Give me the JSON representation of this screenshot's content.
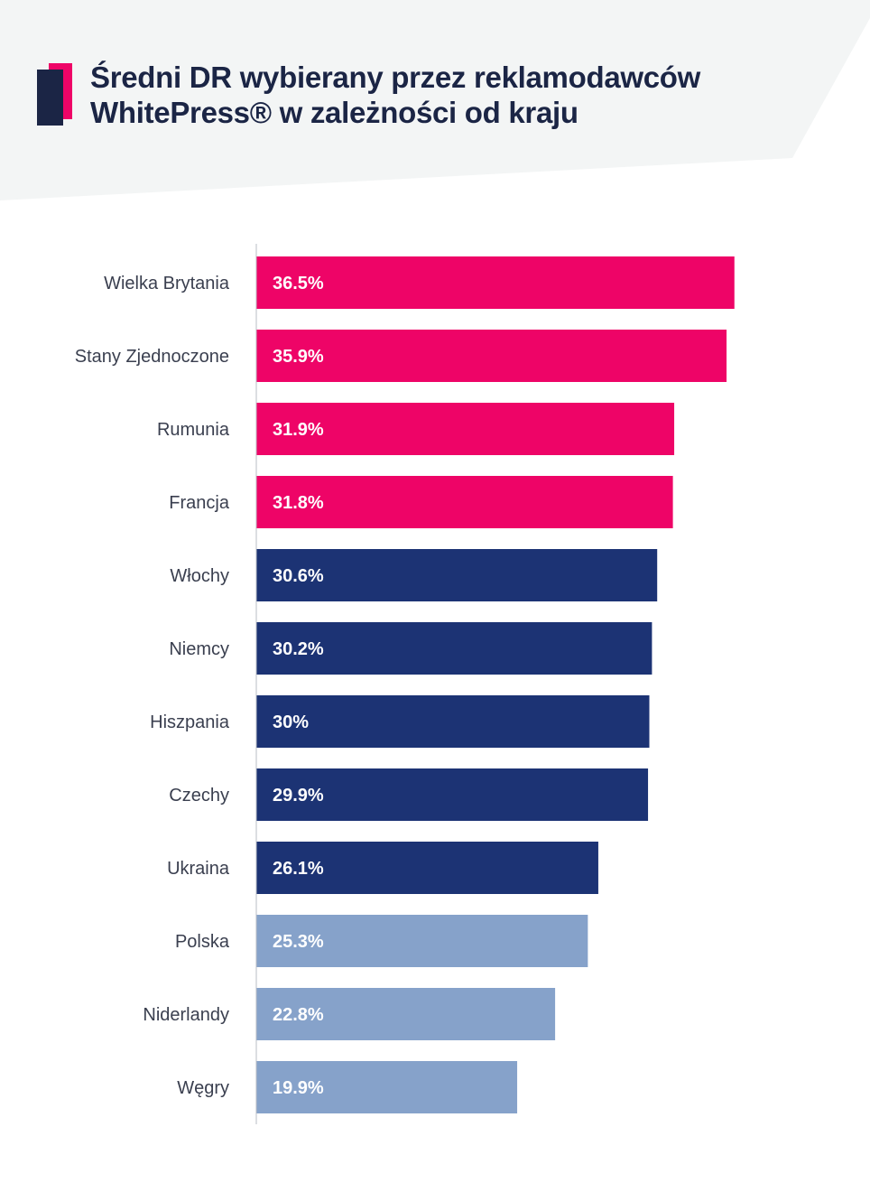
{
  "header": {
    "title_line1": "Średni DR wybierany przez reklamodawców",
    "title_line2": "WhitePress® w zależności od kraju"
  },
  "colors": {
    "top4": "#ee0467",
    "mid": "#1c3374",
    "low": "#86a2ca",
    "header_bg": "#f3f5f5",
    "logo_dark": "#1b2545",
    "logo_accent": "#ee0467"
  },
  "chart_data": {
    "type": "bar",
    "orientation": "horizontal",
    "categories": [
      "Wielka Brytania",
      "Stany Zjednoczone",
      "Rumunia",
      "Francja",
      "Włochy",
      "Niemcy",
      "Hiszpania",
      "Czechy",
      "Ukraina",
      "Polska",
      "Niderlandy",
      "Węgry"
    ],
    "values": [
      36.5,
      35.9,
      31.9,
      31.8,
      30.6,
      30.2,
      30,
      29.9,
      26.1,
      25.3,
      22.8,
      19.9
    ],
    "value_labels": [
      "36.5%",
      "35.9%",
      "31.9%",
      "31.8%",
      "30.6%",
      "30.2%",
      "30%",
      "29.9%",
      "26.1%",
      "25.3%",
      "22.8%",
      "19.9%"
    ],
    "bar_color_groups": [
      "top4",
      "top4",
      "top4",
      "top4",
      "mid",
      "mid",
      "mid",
      "mid",
      "mid",
      "low",
      "low",
      "low"
    ],
    "xlim": [
      0,
      40
    ],
    "grid": false,
    "title": "Średni DR wybierany przez reklamodawców WhitePress® w zależności od kraju",
    "xlabel": "",
    "ylabel": ""
  }
}
